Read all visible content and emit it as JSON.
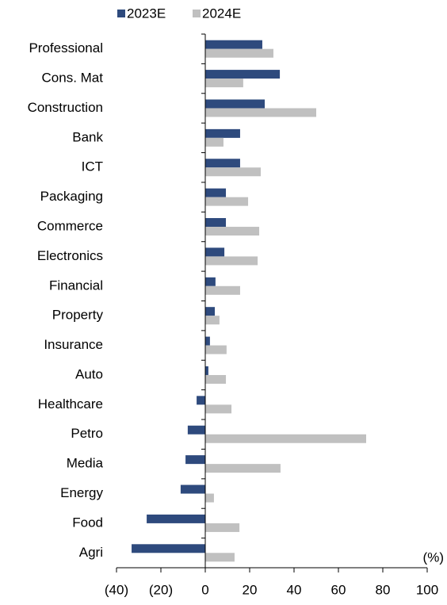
{
  "chart_data": {
    "type": "barh",
    "annotations": [
      "(%)"
    ],
    "categories": [
      "Professional",
      "Cons. Mat",
      "Construction",
      "Bank",
      "ICT",
      "Packaging",
      "Commerce",
      "Electronics",
      "Financial",
      "Property",
      "Insurance",
      "Auto",
      "Healthcare",
      "Petro",
      "Media",
      "Energy",
      "Food",
      "Agri"
    ],
    "series": [
      {
        "name": "2023E",
        "color": "#2e4a7d",
        "values": [
          25.7,
          33.6,
          26.8,
          15.7,
          15.7,
          9.3,
          9.3,
          8.6,
          4.6,
          4.3,
          2.1,
          1.4,
          -3.9,
          -7.9,
          -8.9,
          -11.1,
          -26.4,
          -33.2
        ]
      },
      {
        "name": "2024E",
        "color": "#c0c0c0",
        "values": [
          30.7,
          17.1,
          50,
          8.2,
          25,
          19.3,
          24.3,
          23.6,
          15.7,
          6.4,
          9.6,
          9.3,
          11.8,
          72.5,
          33.9,
          3.9,
          15.4,
          13.2
        ]
      }
    ],
    "xlim": [
      -40,
      100
    ],
    "xticks": [
      {
        "value": -40,
        "label": "(40)"
      },
      {
        "value": -20,
        "label": "(20)"
      },
      0,
      20,
      40,
      60,
      80,
      100
    ],
    "legend": "top"
  }
}
